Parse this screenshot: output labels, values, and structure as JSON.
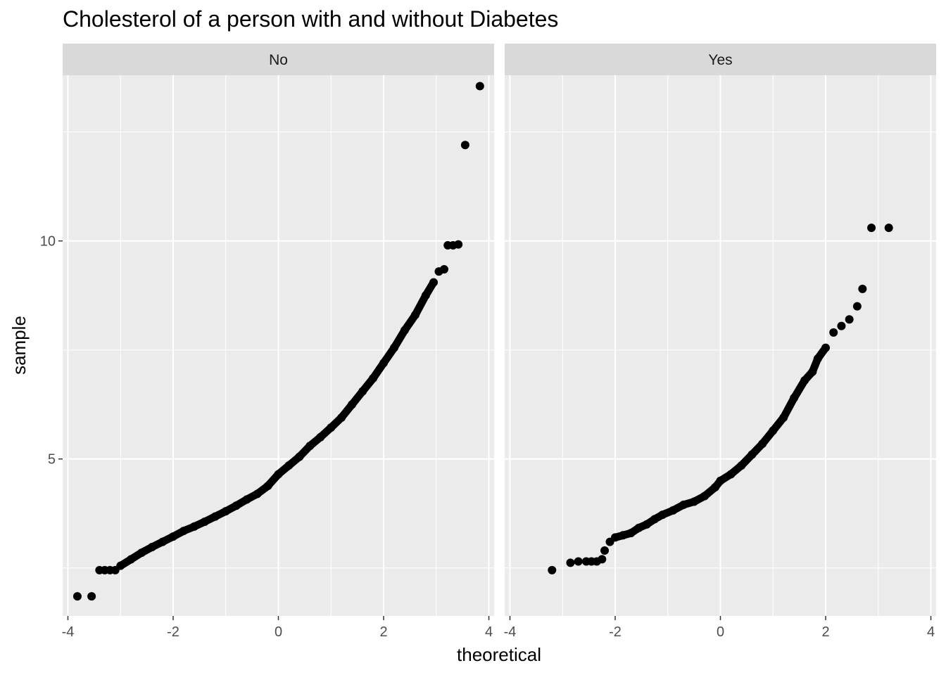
{
  "chart_data": {
    "type": "scatter",
    "title": "Cholesterol of a person with and without Diabetes",
    "xlabel": "theoretical",
    "ylabel": "sample",
    "xlim": [
      -4.1,
      4.1
    ],
    "ylim": [
      1.4,
      13.8
    ],
    "x_ticks": [
      -4,
      -2,
      0,
      2,
      4
    ],
    "x_tick_labels": [
      "-4",
      "-2",
      "0",
      "2",
      "4"
    ],
    "y_ticks": [
      5,
      10
    ],
    "y_tick_labels": [
      "5",
      "10"
    ],
    "grid": true,
    "panels": [
      {
        "name": "No",
        "points": [
          [
            -3.82,
            1.85
          ],
          [
            -3.55,
            1.85
          ],
          [
            -3.4,
            2.45
          ],
          [
            -3.3,
            2.45
          ],
          [
            -3.2,
            2.45
          ],
          [
            -3.1,
            2.45
          ],
          [
            -3.0,
            2.55
          ],
          [
            -2.8,
            2.7
          ],
          [
            -2.6,
            2.85
          ],
          [
            -2.4,
            2.98
          ],
          [
            -2.2,
            3.1
          ],
          [
            -2.0,
            3.22
          ],
          [
            -1.8,
            3.35
          ],
          [
            -1.6,
            3.45
          ],
          [
            -1.4,
            3.56
          ],
          [
            -1.2,
            3.68
          ],
          [
            -1.0,
            3.8
          ],
          [
            -0.8,
            3.93
          ],
          [
            -0.6,
            4.07
          ],
          [
            -0.4,
            4.2
          ],
          [
            -0.2,
            4.38
          ],
          [
            0.0,
            4.65
          ],
          [
            0.2,
            4.85
          ],
          [
            0.4,
            5.05
          ],
          [
            0.6,
            5.3
          ],
          [
            0.8,
            5.5
          ],
          [
            1.0,
            5.72
          ],
          [
            1.2,
            5.95
          ],
          [
            1.4,
            6.25
          ],
          [
            1.6,
            6.55
          ],
          [
            1.8,
            6.85
          ],
          [
            2.0,
            7.2
          ],
          [
            2.2,
            7.55
          ],
          [
            2.4,
            7.95
          ],
          [
            2.6,
            8.3
          ],
          [
            2.8,
            8.75
          ],
          [
            2.95,
            9.05
          ],
          [
            3.05,
            9.3
          ],
          [
            3.15,
            9.35
          ],
          [
            3.22,
            9.9
          ],
          [
            3.32,
            9.9
          ],
          [
            3.42,
            9.92
          ],
          [
            3.55,
            12.2
          ],
          [
            3.83,
            13.55
          ]
        ]
      },
      {
        "name": "Yes",
        "points": [
          [
            -3.2,
            2.45
          ],
          [
            -2.85,
            2.62
          ],
          [
            -2.7,
            2.65
          ],
          [
            -2.55,
            2.65
          ],
          [
            -2.45,
            2.65
          ],
          [
            -2.35,
            2.65
          ],
          [
            -2.25,
            2.7
          ],
          [
            -2.2,
            2.9
          ],
          [
            -2.1,
            3.1
          ],
          [
            -2.0,
            3.2
          ],
          [
            -1.85,
            3.25
          ],
          [
            -1.7,
            3.3
          ],
          [
            -1.55,
            3.42
          ],
          [
            -1.4,
            3.5
          ],
          [
            -1.25,
            3.62
          ],
          [
            -1.1,
            3.72
          ],
          [
            -0.9,
            3.82
          ],
          [
            -0.7,
            3.95
          ],
          [
            -0.5,
            4.02
          ],
          [
            -0.3,
            4.15
          ],
          [
            -0.1,
            4.35
          ],
          [
            0.0,
            4.5
          ],
          [
            0.2,
            4.65
          ],
          [
            0.4,
            4.85
          ],
          [
            0.6,
            5.1
          ],
          [
            0.8,
            5.35
          ],
          [
            1.0,
            5.65
          ],
          [
            1.2,
            5.95
          ],
          [
            1.4,
            6.4
          ],
          [
            1.6,
            6.8
          ],
          [
            1.75,
            7.0
          ],
          [
            1.85,
            7.3
          ],
          [
            2.0,
            7.55
          ],
          [
            2.15,
            7.9
          ],
          [
            2.3,
            8.05
          ],
          [
            2.45,
            8.2
          ],
          [
            2.6,
            8.5
          ],
          [
            2.7,
            8.9
          ],
          [
            2.87,
            10.3
          ],
          [
            3.2,
            10.3
          ]
        ]
      }
    ]
  }
}
